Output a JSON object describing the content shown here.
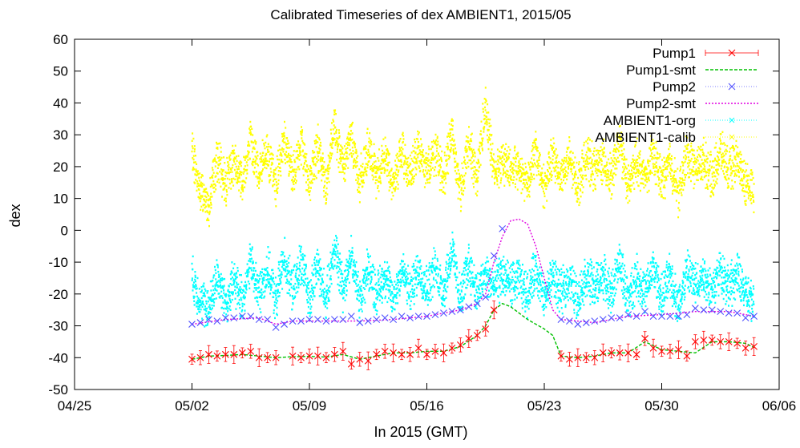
{
  "chart_data": {
    "type": "line",
    "title": "Calibrated Timeseries of dex AMBIENT1, 2015/05",
    "xlabel": "In 2015 (GMT)",
    "ylabel": "dex",
    "xlim": [
      "04/25",
      "06/06"
    ],
    "ylim": [
      -50,
      60
    ],
    "x_ticks": [
      "04/25",
      "05/02",
      "05/09",
      "05/16",
      "05/23",
      "05/30",
      "06/06"
    ],
    "y_ticks": [
      -50,
      -40,
      -30,
      -20,
      -10,
      0,
      10,
      20,
      30,
      40,
      50,
      60
    ],
    "grid": false,
    "legend_position": "top-right",
    "x_unit": "day of May 2015 (negative = April)",
    "series": [
      {
        "name": "Pump1",
        "color": "#ff0000",
        "style": "points-with-errorbars",
        "x": [
          1.0,
          1.5,
          2.0,
          2.5,
          3.0,
          3.5,
          4.0,
          4.5,
          5.0,
          5.5,
          6.0,
          7.0,
          7.5,
          8.0,
          8.5,
          9.0,
          9.5,
          10.0,
          10.5,
          11.0,
          11.5,
          12.0,
          12.5,
          13.0,
          13.5,
          14.0,
          14.5,
          15.0,
          15.5,
          16.0,
          16.5,
          17.0,
          17.5,
          18.0,
          18.5,
          19.0,
          23.0,
          23.5,
          24.0,
          24.5,
          25.0,
          25.5,
          26.0,
          26.5,
          27.0,
          27.5,
          28.0,
          28.5,
          29.0,
          29.5,
          30.0,
          30.5,
          31.0,
          31.5,
          32.0,
          32.5,
          33.0,
          33.5,
          34.0,
          34.5
        ],
        "y": [
          -40.5,
          -40,
          -39,
          -39.5,
          -39,
          -39,
          -38.5,
          -38,
          -40,
          -40,
          -40,
          -39.5,
          -40,
          -39.5,
          -39.5,
          -40,
          -39,
          -38,
          -42,
          -40.5,
          -41,
          -39,
          -38,
          -38.5,
          -39,
          -39,
          -37,
          -39,
          -38,
          -38.5,
          -37,
          -36,
          -34,
          -33,
          -31,
          -25,
          -39.5,
          -40.5,
          -40,
          -40,
          -40,
          -38.5,
          -38.5,
          -38.5,
          -38.5,
          -39,
          -34,
          -37,
          -38,
          -38,
          -37.5,
          -39.5,
          -35,
          -34.5,
          -34.5,
          -35,
          -35,
          -35.5,
          -37,
          -36.5
        ]
      },
      {
        "name": "Pump1-smt",
        "color": "#00c000",
        "style": "dashed-line",
        "x": [
          1,
          2,
          3,
          4,
          5,
          6,
          7,
          8,
          9,
          10,
          11,
          12,
          13,
          14,
          15,
          16,
          17,
          18,
          18.5,
          19,
          19.5,
          20,
          21,
          22,
          22.5,
          23,
          24,
          25,
          26,
          27,
          28,
          29,
          30,
          31,
          32,
          33,
          34,
          34.5
        ],
        "y": [
          -40.5,
          -39.5,
          -39.3,
          -39,
          -39.5,
          -40,
          -39.7,
          -39.6,
          -39.8,
          -39,
          -40.5,
          -39.5,
          -38.5,
          -38.5,
          -38,
          -38,
          -36.5,
          -33,
          -30,
          -25,
          -23,
          -24,
          -28,
          -31,
          -33,
          -39.5,
          -40,
          -39.5,
          -38.5,
          -38.5,
          -35,
          -37.5,
          -38,
          -38.5,
          -35,
          -35,
          -35.5,
          -36.8
        ]
      },
      {
        "name": "Pump2",
        "color": "#5050ff",
        "style": "points",
        "x": [
          1,
          1.5,
          2,
          2.5,
          3,
          3.5,
          4,
          4.5,
          5,
          5.5,
          6,
          6.5,
          7,
          7.5,
          8,
          8.5,
          9,
          9.5,
          10,
          10.5,
          11,
          11.5,
          12,
          12.5,
          13,
          13.5,
          14,
          14.5,
          15,
          15.5,
          16,
          16.5,
          17,
          17.5,
          18,
          18.5,
          19,
          19.5,
          23,
          23.5,
          24,
          24.5,
          25,
          25.5,
          26,
          26.5,
          27,
          27.5,
          28,
          28.5,
          29,
          29.5,
          30,
          30.5,
          31,
          31.5,
          32,
          32.5,
          33,
          33.5,
          34,
          34.5
        ],
        "y": [
          -29.5,
          -29,
          -28,
          -28.5,
          -27.5,
          -27.5,
          -27,
          -27,
          -28,
          -28,
          -30.5,
          -29.5,
          -28.5,
          -28.5,
          -28,
          -28,
          -28.5,
          -28,
          -28,
          -27,
          -29,
          -28.5,
          -28,
          -27.5,
          -28,
          -27,
          -27.5,
          -27,
          -27,
          -26.5,
          -26,
          -25.5,
          -25,
          -24,
          -23,
          -21,
          -8,
          0.5,
          -28,
          -28.5,
          -29.5,
          -29,
          -28.5,
          -28,
          -27.5,
          -27.5,
          -26.5,
          -27,
          -25.5,
          -27,
          -27,
          -27,
          -27,
          -26.5,
          -24.5,
          -25,
          -25,
          -25.5,
          -26,
          -26,
          -27.5,
          -27
        ]
      },
      {
        "name": "Pump2-smt",
        "color": "#e000e0",
        "style": "dotted-line",
        "x": [
          1,
          3,
          5,
          6,
          7,
          9,
          11,
          13,
          15,
          17,
          18,
          18.5,
          19,
          19.5,
          20,
          20.5,
          21,
          21.5,
          22,
          22.5,
          23,
          25,
          27,
          29,
          31,
          33,
          34.5
        ],
        "y": [
          -29.5,
          -28,
          -27.5,
          -29.5,
          -28.5,
          -28.5,
          -28.5,
          -28,
          -27,
          -25,
          -23,
          -20,
          -10,
          -2,
          3,
          3.5,
          2,
          -5,
          -15,
          -25,
          -28,
          -29,
          -27,
          -26.5,
          -25.5,
          -25.5,
          -27
        ]
      },
      {
        "name": "AMBIENT1-org",
        "color": "#00ffff",
        "style": "dense-points",
        "x": [
          1,
          1.5,
          2,
          2.5,
          3,
          3.5,
          4,
          4.5,
          5,
          5.5,
          6,
          6.5,
          7,
          7.5,
          8,
          8.5,
          9,
          9.5,
          10,
          10.5,
          11,
          11.5,
          12,
          12.5,
          13,
          13.5,
          14,
          14.5,
          15,
          15.5,
          16,
          16.5,
          17,
          17.5,
          18,
          18.5,
          19,
          19.5,
          20,
          20.5,
          21,
          21.5,
          22,
          22.5,
          23,
          23.5,
          24,
          24.5,
          25,
          25.5,
          26,
          26.5,
          27,
          27.5,
          28,
          28.5,
          29,
          29.5,
          30,
          30.5,
          31,
          31.5,
          32,
          32.5,
          33,
          33.5,
          34,
          34.5
        ],
        "y": [
          -15,
          -22,
          -25,
          -14,
          -23,
          -16,
          -22,
          -10,
          -20,
          -12,
          -22,
          -8,
          -20,
          -10,
          -21,
          -11,
          -22,
          -5,
          -18,
          -8,
          -22,
          -12,
          -20,
          -14,
          -22,
          -12,
          -20,
          -12,
          -18,
          -12,
          -19,
          -6,
          -22,
          -10,
          -20,
          -14,
          -18,
          -14,
          -17,
          -16,
          -20,
          -12,
          -22,
          -14,
          -20,
          -15,
          -22,
          -14,
          -18,
          -14,
          -20,
          -10,
          -22,
          -14,
          -20,
          -12,
          -21,
          -14,
          -24,
          -13,
          -17,
          -14,
          -19,
          -12,
          -18,
          -14,
          -20,
          -24
        ]
      },
      {
        "name": "AMBIENT1-calib",
        "color": "#ffff00",
        "style": "dense-points",
        "x": [
          1,
          1.5,
          2,
          2.5,
          3,
          3.5,
          4,
          4.5,
          5,
          5.5,
          6,
          6.5,
          7,
          7.5,
          8,
          8.5,
          9,
          9.5,
          10,
          10.5,
          11,
          11.5,
          12,
          12.5,
          13,
          13.5,
          14,
          14.5,
          15,
          15.5,
          16,
          16.5,
          17,
          17.5,
          18,
          18.5,
          19,
          19.5,
          20,
          20.5,
          21,
          21.5,
          22,
          22.5,
          23,
          23.5,
          24,
          24.5,
          25,
          25.5,
          26,
          26.5,
          27,
          27.5,
          28,
          28.5,
          29,
          29.5,
          30,
          30.5,
          31,
          31.5,
          32,
          32.5,
          33,
          33.5,
          34,
          34.5
        ],
        "y": [
          25,
          12,
          8,
          22,
          15,
          22,
          16,
          28,
          18,
          25,
          14,
          30,
          16,
          27,
          15,
          26,
          14,
          33,
          19,
          30,
          15,
          25,
          17,
          24,
          14,
          25,
          17,
          25,
          19,
          25,
          16,
          31,
          12,
          27,
          17,
          40,
          18,
          22,
          19,
          20,
          15,
          25,
          13,
          23,
          17,
          22,
          14,
          23,
          19,
          22,
          16,
          28,
          13,
          22,
          16,
          24,
          15,
          22,
          11,
          24,
          19,
          22,
          16,
          25,
          18,
          22,
          15,
          13
        ]
      }
    ]
  }
}
